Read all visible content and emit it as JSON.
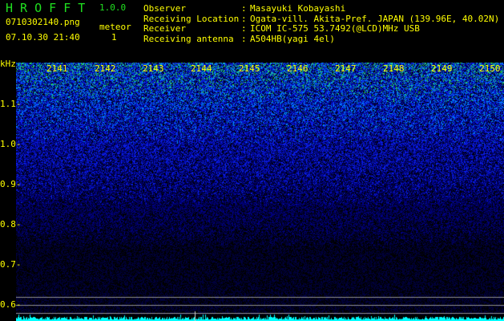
{
  "app": {
    "title": "H R O F F T",
    "version": "1.0.0"
  },
  "file": {
    "name": "0710302140.png",
    "datetime": "07.10.30 21:40"
  },
  "meteor": {
    "label": "meteor",
    "count": "1"
  },
  "info": [
    {
      "label": "Observer",
      "value": "Masayuki Kobayashi"
    },
    {
      "label": "Receiving Location",
      "value": "Ogata-vill. Akita-Pref. JAPAN (139.96E, 40.02N)"
    },
    {
      "label": "Receiver",
      "value": "ICOM IC-575 53.7492(@LCD)MHz USB"
    },
    {
      "label": "Receiving antenna",
      "value": "A504HB(yagi 4el)"
    }
  ],
  "axis": {
    "unit": "kHz",
    "y_ticks": [
      "1.1",
      "1.0",
      "0.9",
      "0.8",
      "0.7",
      "0.6"
    ],
    "x_ticks": [
      "2141",
      "2142",
      "2143",
      "2144",
      "2145",
      "2146",
      "2147",
      "2148",
      "2149",
      "2150"
    ]
  },
  "colors": {
    "text": "#ffff00",
    "title": "#20e020",
    "histogram": "#00ffff"
  }
}
